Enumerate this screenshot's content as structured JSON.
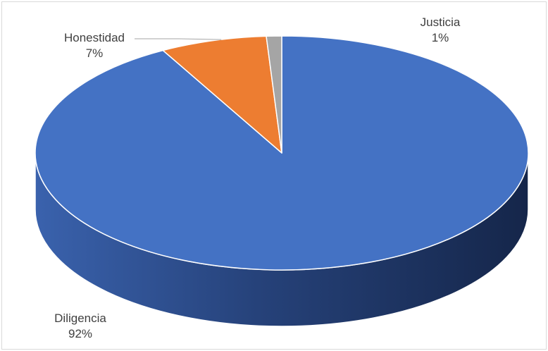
{
  "chart_data": {
    "type": "pie",
    "title": "",
    "slices": [
      {
        "label": "Diligencia",
        "percent_label": "92%",
        "value": 92,
        "color": "#4472C4"
      },
      {
        "label": "Honestidad",
        "percent_label": "7%",
        "value": 7,
        "color": "#ED7D31"
      },
      {
        "label": "Justicia",
        "percent_label": "1%",
        "value": 1,
        "color": "#A5A5A5"
      }
    ],
    "legend": "none",
    "style": "3d"
  }
}
